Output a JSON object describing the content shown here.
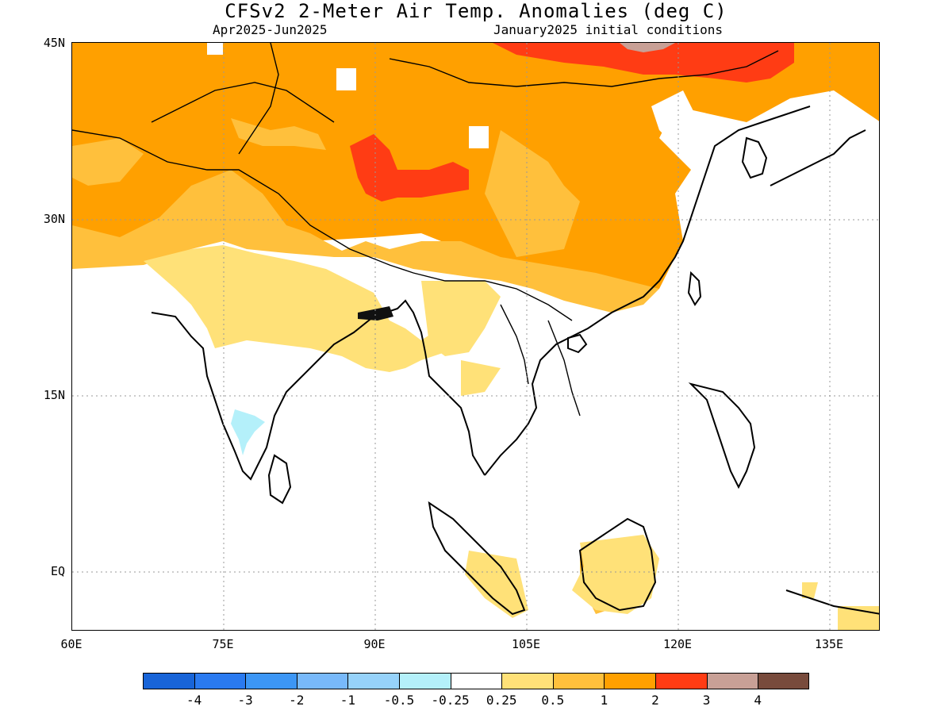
{
  "title": "CFSv2 2-Meter Air Temp. Anomalies (deg C)",
  "subtitle_left": "Apr2025-Jun2025",
  "subtitle_right": "January2025 initial conditions",
  "lat_labels": [
    "45N",
    "30N",
    "15N",
    "EQ"
  ],
  "lon_labels": [
    "60E",
    "75E",
    "90E",
    "105E",
    "120E",
    "135E"
  ],
  "colorbar": {
    "colors": [
      "#1864d8",
      "#2a7af0",
      "#3c96f5",
      "#78b9fa",
      "#96d2fa",
      "#b4f0fa",
      "#ffffff",
      "#ffe178",
      "#ffc03c",
      "#ffa000",
      "#ff3c14",
      "#c8a096",
      "#784b3c"
    ],
    "labels": [
      "-4",
      "-3",
      "-2",
      "-1",
      "-0.5",
      "-0.25",
      "0.25",
      "0.5",
      "1",
      "2",
      "3",
      "4"
    ]
  },
  "map": {
    "region": "South and East Asia",
    "lon_range": [
      60,
      140
    ],
    "lat_range": [
      -5,
      45
    ],
    "gridlines": "dotted"
  }
}
